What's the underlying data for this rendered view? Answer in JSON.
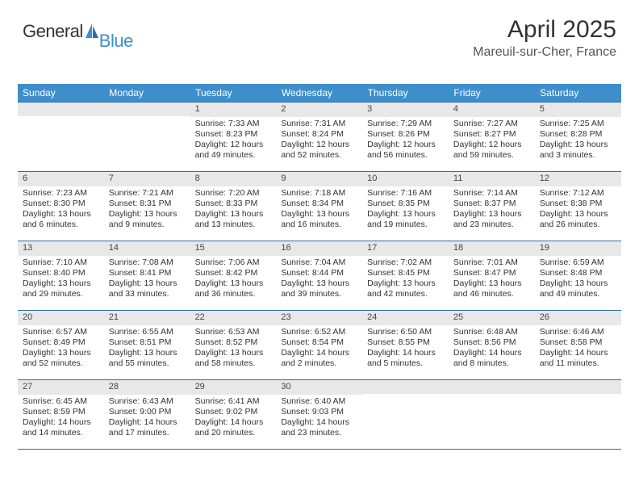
{
  "logo": {
    "general": "General",
    "blue": "Blue"
  },
  "title": {
    "month": "April 2025",
    "location": "Mareuil-sur-Cher, France"
  },
  "colors": {
    "header_blue": "#3e8ecc",
    "row_sep": "#2a6fa8",
    "date_bar": "#e8e8e8",
    "text": "#333333",
    "muted": "#555555",
    "bg": "#ffffff"
  },
  "typography": {
    "title_fontsize": 30,
    "location_fontsize": 16,
    "header_fontsize": 12,
    "cell_fontsize": 10.5,
    "logo_fontsize": 22
  },
  "calendar": {
    "type": "table",
    "days_of_week": [
      "Sunday",
      "Monday",
      "Tuesday",
      "Wednesday",
      "Thursday",
      "Friday",
      "Saturday"
    ],
    "first_weekday_index": 2,
    "rows": [
      [
        null,
        null,
        {
          "date": "1",
          "sunrise": "Sunrise: 7:33 AM",
          "sunset": "Sunset: 8:23 PM",
          "daylight": "Daylight: 12 hours and 49 minutes."
        },
        {
          "date": "2",
          "sunrise": "Sunrise: 7:31 AM",
          "sunset": "Sunset: 8:24 PM",
          "daylight": "Daylight: 12 hours and 52 minutes."
        },
        {
          "date": "3",
          "sunrise": "Sunrise: 7:29 AM",
          "sunset": "Sunset: 8:26 PM",
          "daylight": "Daylight: 12 hours and 56 minutes."
        },
        {
          "date": "4",
          "sunrise": "Sunrise: 7:27 AM",
          "sunset": "Sunset: 8:27 PM",
          "daylight": "Daylight: 12 hours and 59 minutes."
        },
        {
          "date": "5",
          "sunrise": "Sunrise: 7:25 AM",
          "sunset": "Sunset: 8:28 PM",
          "daylight": "Daylight: 13 hours and 3 minutes."
        }
      ],
      [
        {
          "date": "6",
          "sunrise": "Sunrise: 7:23 AM",
          "sunset": "Sunset: 8:30 PM",
          "daylight": "Daylight: 13 hours and 6 minutes."
        },
        {
          "date": "7",
          "sunrise": "Sunrise: 7:21 AM",
          "sunset": "Sunset: 8:31 PM",
          "daylight": "Daylight: 13 hours and 9 minutes."
        },
        {
          "date": "8",
          "sunrise": "Sunrise: 7:20 AM",
          "sunset": "Sunset: 8:33 PM",
          "daylight": "Daylight: 13 hours and 13 minutes."
        },
        {
          "date": "9",
          "sunrise": "Sunrise: 7:18 AM",
          "sunset": "Sunset: 8:34 PM",
          "daylight": "Daylight: 13 hours and 16 minutes."
        },
        {
          "date": "10",
          "sunrise": "Sunrise: 7:16 AM",
          "sunset": "Sunset: 8:35 PM",
          "daylight": "Daylight: 13 hours and 19 minutes."
        },
        {
          "date": "11",
          "sunrise": "Sunrise: 7:14 AM",
          "sunset": "Sunset: 8:37 PM",
          "daylight": "Daylight: 13 hours and 23 minutes."
        },
        {
          "date": "12",
          "sunrise": "Sunrise: 7:12 AM",
          "sunset": "Sunset: 8:38 PM",
          "daylight": "Daylight: 13 hours and 26 minutes."
        }
      ],
      [
        {
          "date": "13",
          "sunrise": "Sunrise: 7:10 AM",
          "sunset": "Sunset: 8:40 PM",
          "daylight": "Daylight: 13 hours and 29 minutes."
        },
        {
          "date": "14",
          "sunrise": "Sunrise: 7:08 AM",
          "sunset": "Sunset: 8:41 PM",
          "daylight": "Daylight: 13 hours and 33 minutes."
        },
        {
          "date": "15",
          "sunrise": "Sunrise: 7:06 AM",
          "sunset": "Sunset: 8:42 PM",
          "daylight": "Daylight: 13 hours and 36 minutes."
        },
        {
          "date": "16",
          "sunrise": "Sunrise: 7:04 AM",
          "sunset": "Sunset: 8:44 PM",
          "daylight": "Daylight: 13 hours and 39 minutes."
        },
        {
          "date": "17",
          "sunrise": "Sunrise: 7:02 AM",
          "sunset": "Sunset: 8:45 PM",
          "daylight": "Daylight: 13 hours and 42 minutes."
        },
        {
          "date": "18",
          "sunrise": "Sunrise: 7:01 AM",
          "sunset": "Sunset: 8:47 PM",
          "daylight": "Daylight: 13 hours and 46 minutes."
        },
        {
          "date": "19",
          "sunrise": "Sunrise: 6:59 AM",
          "sunset": "Sunset: 8:48 PM",
          "daylight": "Daylight: 13 hours and 49 minutes."
        }
      ],
      [
        {
          "date": "20",
          "sunrise": "Sunrise: 6:57 AM",
          "sunset": "Sunset: 8:49 PM",
          "daylight": "Daylight: 13 hours and 52 minutes."
        },
        {
          "date": "21",
          "sunrise": "Sunrise: 6:55 AM",
          "sunset": "Sunset: 8:51 PM",
          "daylight": "Daylight: 13 hours and 55 minutes."
        },
        {
          "date": "22",
          "sunrise": "Sunrise: 6:53 AM",
          "sunset": "Sunset: 8:52 PM",
          "daylight": "Daylight: 13 hours and 58 minutes."
        },
        {
          "date": "23",
          "sunrise": "Sunrise: 6:52 AM",
          "sunset": "Sunset: 8:54 PM",
          "daylight": "Daylight: 14 hours and 2 minutes."
        },
        {
          "date": "24",
          "sunrise": "Sunrise: 6:50 AM",
          "sunset": "Sunset: 8:55 PM",
          "daylight": "Daylight: 14 hours and 5 minutes."
        },
        {
          "date": "25",
          "sunrise": "Sunrise: 6:48 AM",
          "sunset": "Sunset: 8:56 PM",
          "daylight": "Daylight: 14 hours and 8 minutes."
        },
        {
          "date": "26",
          "sunrise": "Sunrise: 6:46 AM",
          "sunset": "Sunset: 8:58 PM",
          "daylight": "Daylight: 14 hours and 11 minutes."
        }
      ],
      [
        {
          "date": "27",
          "sunrise": "Sunrise: 6:45 AM",
          "sunset": "Sunset: 8:59 PM",
          "daylight": "Daylight: 14 hours and 14 minutes."
        },
        {
          "date": "28",
          "sunrise": "Sunrise: 6:43 AM",
          "sunset": "Sunset: 9:00 PM",
          "daylight": "Daylight: 14 hours and 17 minutes."
        },
        {
          "date": "29",
          "sunrise": "Sunrise: 6:41 AM",
          "sunset": "Sunset: 9:02 PM",
          "daylight": "Daylight: 14 hours and 20 minutes."
        },
        {
          "date": "30",
          "sunrise": "Sunrise: 6:40 AM",
          "sunset": "Sunset: 9:03 PM",
          "daylight": "Daylight: 14 hours and 23 minutes."
        },
        null,
        null,
        null
      ]
    ]
  }
}
